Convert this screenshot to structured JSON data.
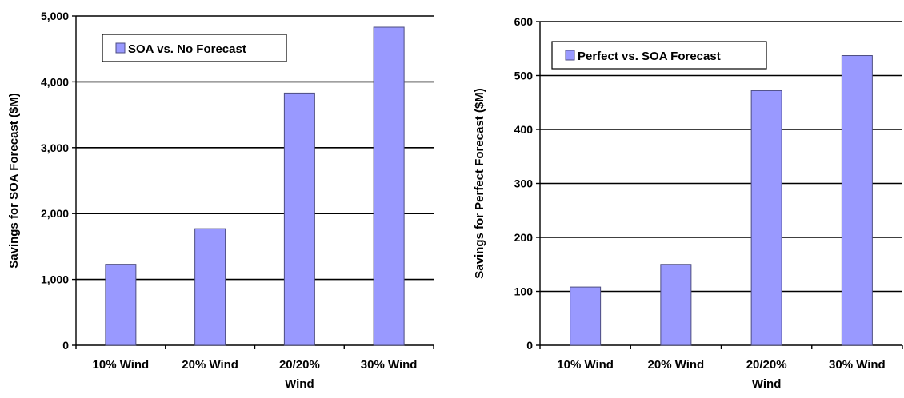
{
  "chart_data": [
    {
      "type": "bar",
      "categories": [
        "10% Wind",
        "20% Wind",
        "20/20% Wind",
        "30% Wind"
      ],
      "category_lines": [
        [
          "10% Wind"
        ],
        [
          "20% Wind"
        ],
        [
          "20/20%",
          "Wind"
        ],
        [
          "30% Wind"
        ]
      ],
      "series": [
        {
          "name": "SOA vs. No Forecast",
          "values": [
            1230,
            1770,
            3830,
            4830
          ]
        }
      ],
      "ylabel": "Savings for SOA Forecast ($M)",
      "ylim": [
        0,
        5000
      ],
      "yticks": [
        0,
        1000,
        2000,
        3000,
        4000,
        5000
      ],
      "ytick_labels": [
        "0",
        "1,000",
        "2,000",
        "3,000",
        "4,000",
        "5,000"
      ],
      "grid": true,
      "legend_position": "top-left",
      "bar_color": "#9999ff",
      "bar_stroke": "#4d4d80"
    },
    {
      "type": "bar",
      "categories": [
        "10% Wind",
        "20% Wind",
        "20/20% Wind",
        "30% Wind"
      ],
      "category_lines": [
        [
          "10% Wind"
        ],
        [
          "20% Wind"
        ],
        [
          "20/20%",
          "Wind"
        ],
        [
          "30% Wind"
        ]
      ],
      "series": [
        {
          "name": "Perfect vs. SOA Forecast",
          "values": [
            108,
            150,
            472,
            537
          ]
        }
      ],
      "ylabel": "Savings for Perfect Forecast ($M)",
      "ylim": [
        0,
        600
      ],
      "yticks": [
        0,
        100,
        200,
        300,
        400,
        500,
        600
      ],
      "ytick_labels": [
        "0",
        "100",
        "200",
        "300",
        "400",
        "500",
        "600"
      ],
      "grid": true,
      "legend_position": "top-left",
      "bar_color": "#9999ff",
      "bar_stroke": "#4d4d80"
    }
  ]
}
